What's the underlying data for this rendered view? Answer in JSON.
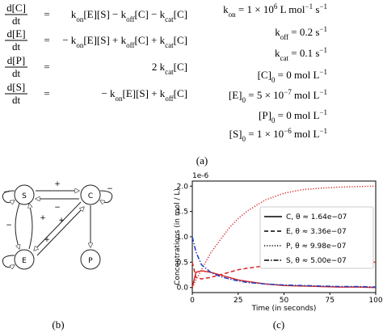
{
  "equations": {
    "rows": [
      {
        "num": "d[C]",
        "den": "dt",
        "eq": "=",
        "rhs": [
          "k",
          {
            "sub": "on"
          },
          "[E][S] − k",
          {
            "sub": "off"
          },
          "[C] − k",
          {
            "sub": "cat"
          },
          "[C]"
        ]
      },
      {
        "num": "d[E]",
        "den": "dt",
        "eq": "=",
        "rhs": [
          "− k",
          {
            "sub": "on"
          },
          "[E][S] + k",
          {
            "sub": "off"
          },
          "[C] + k",
          {
            "sub": "cat"
          },
          "[C]"
        ]
      },
      {
        "num": "d[P]",
        "den": "dt",
        "eq": "=",
        "rhs": [
          "2 k",
          {
            "sub": "cat"
          },
          "[C]"
        ]
      },
      {
        "num": "d[S]",
        "den": "dt",
        "eq": "=",
        "rhs": [
          "− k",
          {
            "sub": "on"
          },
          "[E][S] + k",
          {
            "sub": "off"
          },
          "[C]"
        ]
      }
    ],
    "params": [
      [
        "k",
        {
          "sub": "on"
        },
        " = 1 × 10",
        {
          "sup": "6"
        },
        " L mol",
        {
          "sup": "−1"
        },
        " s",
        {
          "sup": "−1"
        }
      ],
      [
        "k",
        {
          "sub": "off"
        },
        " = 0.2 s",
        {
          "sup": "−1"
        }
      ],
      [
        "k",
        {
          "sub": "cat"
        },
        " = 0.1 s",
        {
          "sup": "−1"
        }
      ],
      [
        "[C]",
        {
          "sub": "0"
        },
        " = 0 mol L",
        {
          "sup": "−1"
        }
      ],
      [
        "[E]",
        {
          "sub": "0"
        },
        " = 5 × 10",
        {
          "sup": "−7"
        },
        " mol L",
        {
          "sup": "−1"
        }
      ],
      [
        "[P]",
        {
          "sub": "0"
        },
        " = 0 mol L",
        {
          "sup": "−1"
        }
      ],
      [
        "[S]",
        {
          "sub": "0"
        },
        " = 1 × 10",
        {
          "sup": "−6"
        },
        " mol L",
        {
          "sup": "−1"
        }
      ]
    ],
    "caption": "(a)"
  },
  "diagram": {
    "nodes": [
      "S",
      "C",
      "E",
      "P"
    ],
    "edge_labels": [
      "+",
      "−",
      "+",
      "−",
      "−",
      "+",
      "+",
      "−"
    ],
    "caption": "(b)"
  },
  "chart_data": {
    "type": "line",
    "caption": "(c)",
    "scale_label": "1e-6",
    "xlabel": "Time (in seconds)",
    "ylabel": "Concentrations (in mol / L)",
    "xlim": [
      0,
      100
    ],
    "xticks": [
      0,
      25,
      50,
      75,
      100
    ],
    "ylim": [
      -0.1,
      2.1
    ],
    "yticks": [
      {
        "value": 0,
        "label": "0.0"
      },
      {
        "value": 0.5,
        "label": "0.5"
      },
      {
        "value": 1,
        "label": "1.0"
      },
      {
        "value": 1.5,
        "label": "1.5"
      },
      {
        "value": 2,
        "label": "2.0"
      }
    ],
    "legend_line_color": "#000000",
    "x": [
      0,
      2,
      5,
      10,
      15,
      20,
      25,
      30,
      40,
      50,
      60,
      70,
      80,
      90,
      100
    ],
    "series": [
      {
        "name": "C, θ ≈ 1.64e−07",
        "color": "#d62728",
        "style": "solid",
        "values": [
          0,
          0.3,
          0.33,
          0.3,
          0.25,
          0.2,
          0.15,
          0.12,
          0.07,
          0.04,
          0.03,
          0.02,
          0.01,
          0.01,
          0
        ]
      },
      {
        "name": "E, θ ≈ 3.36e−07",
        "color": "#d62728",
        "style": "dashed",
        "values": [
          0.5,
          0.2,
          0.17,
          0.2,
          0.25,
          0.3,
          0.35,
          0.38,
          0.43,
          0.46,
          0.48,
          0.49,
          0.5,
          0.5,
          0.5
        ]
      },
      {
        "name": "P, θ ≈ 9.98e−07",
        "color": "#d62728",
        "style": "dotted",
        "values": [
          0,
          0.15,
          0.35,
          0.68,
          0.93,
          1.17,
          1.36,
          1.51,
          1.73,
          1.86,
          1.93,
          1.96,
          1.98,
          1.99,
          2
        ]
      },
      {
        "name": "S, θ ≈ 5.00e−07",
        "color": "#1f3fbf",
        "style": "dashdot",
        "values": [
          1,
          0.7,
          0.45,
          0.3,
          0.22,
          0.17,
          0.13,
          0.1,
          0.07,
          0.05,
          0.04,
          0.03,
          0.02,
          0.02,
          0.01
        ]
      }
    ]
  }
}
